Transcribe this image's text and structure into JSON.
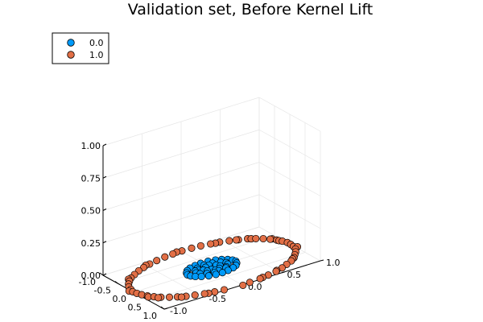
{
  "chart_data": {
    "type": "scatter3d",
    "title": "Validation set, Before Kernel Lift",
    "xlim": [
      -1.0,
      1.0
    ],
    "ylim": [
      -1.0,
      1.0
    ],
    "zlim": [
      0.0,
      1.0
    ],
    "xticks": [
      -1.0,
      -0.5,
      0.0,
      0.5,
      1.0
    ],
    "yticks": [
      -1.0,
      -0.5,
      0.0,
      0.5,
      1.0
    ],
    "zticks": [
      0.0,
      0.25,
      0.5,
      0.75,
      1.0
    ],
    "xtick_labels": [
      "-1.0",
      "-0.5",
      "0.0",
      "0.5",
      "1.0"
    ],
    "ytick_labels": [
      "-1.0",
      "-0.5",
      "0.0",
      "0.5",
      "1.0"
    ],
    "ztick_labels": [
      "0.00",
      "0.25",
      "0.50",
      "0.75",
      "1.00"
    ],
    "grid": true,
    "legend_position": "top-left",
    "series": [
      {
        "name": "0.0",
        "color": "#009af9",
        "x": [
          0.3,
          0.28,
          0.24,
          0.18,
          0.1,
          0.02,
          -0.06,
          -0.14,
          -0.21,
          -0.26,
          -0.3,
          -0.31,
          -0.29,
          -0.25,
          -0.19,
          -0.11,
          -0.03,
          0.05,
          0.13,
          0.2,
          0.26,
          0.29,
          0.18,
          0.12,
          0.04,
          -0.04,
          -0.12,
          -0.18,
          -0.2,
          -0.16,
          -0.08,
          0.0,
          0.08,
          0.15,
          0.2,
          0.1,
          0.02,
          -0.06,
          -0.1,
          -0.02,
          0.06,
          0.12,
          -0.14,
          0.16,
          0.05,
          -0.08
        ],
        "y": [
          0.02,
          0.1,
          0.18,
          0.24,
          0.28,
          0.3,
          0.29,
          0.26,
          0.21,
          0.15,
          0.07,
          -0.02,
          -0.1,
          -0.18,
          -0.24,
          -0.28,
          -0.3,
          -0.29,
          -0.26,
          -0.21,
          -0.14,
          -0.06,
          0.02,
          0.14,
          0.19,
          0.2,
          0.16,
          0.08,
          -0.02,
          -0.12,
          -0.18,
          -0.2,
          -0.18,
          -0.12,
          -0.04,
          0.06,
          0.1,
          0.08,
          -0.04,
          -0.1,
          -0.08,
          0.0,
          0.02,
          0.12,
          -0.02,
          -0.14
        ],
        "z": [
          0.0
        ]
      },
      {
        "name": "1.0",
        "color": "#e26f46",
        "x": [
          0.99,
          0.97,
          0.93,
          0.88,
          0.82,
          0.74,
          0.66,
          0.57,
          0.47,
          0.37,
          0.26,
          0.14,
          0.03,
          -0.08,
          -0.19,
          -0.3,
          -0.41,
          -0.51,
          -0.6,
          -0.69,
          -0.76,
          -0.83,
          -0.89,
          -0.93,
          -0.97,
          -0.99,
          -1.0,
          -0.99,
          -0.97,
          -0.93,
          -0.88,
          -0.82,
          -0.75,
          -0.66,
          -0.57,
          -0.47,
          -0.37,
          -0.26,
          -0.14,
          -0.03,
          0.08,
          0.19,
          0.3,
          0.41,
          0.51,
          0.61,
          0.69,
          0.77,
          0.83,
          0.89,
          0.94,
          0.97,
          1.02,
          0.95,
          0.85,
          0.6,
          0.2,
          -0.25,
          -0.65,
          -0.9,
          -1.02,
          -0.88,
          -0.55,
          -0.1,
          0.35,
          0.75,
          0.92,
          0.5,
          -0.4,
          -0.78
        ],
        "y": [
          0.1,
          0.24,
          0.36,
          0.48,
          0.58,
          0.67,
          0.76,
          0.83,
          0.88,
          0.93,
          0.97,
          0.99,
          1.0,
          1.0,
          0.98,
          0.95,
          0.91,
          0.86,
          0.8,
          0.73,
          0.64,
          0.55,
          0.45,
          0.35,
          0.24,
          0.13,
          0.01,
          -0.11,
          -0.22,
          -0.34,
          -0.45,
          -0.55,
          -0.64,
          -0.73,
          -0.81,
          -0.87,
          -0.92,
          -0.96,
          -0.98,
          -1.0,
          -0.99,
          -0.97,
          -0.94,
          -0.9,
          -0.85,
          -0.78,
          -0.71,
          -0.63,
          -0.54,
          -0.44,
          -0.33,
          -0.22,
          0.0,
          0.28,
          0.5,
          0.8,
          1.02,
          0.96,
          0.76,
          0.4,
          -0.05,
          -0.5,
          -0.85,
          -1.02,
          -0.95,
          -0.68,
          -0.4,
          -0.88,
          0.93,
          0.62
        ],
        "z": [
          0.0
        ]
      }
    ]
  }
}
